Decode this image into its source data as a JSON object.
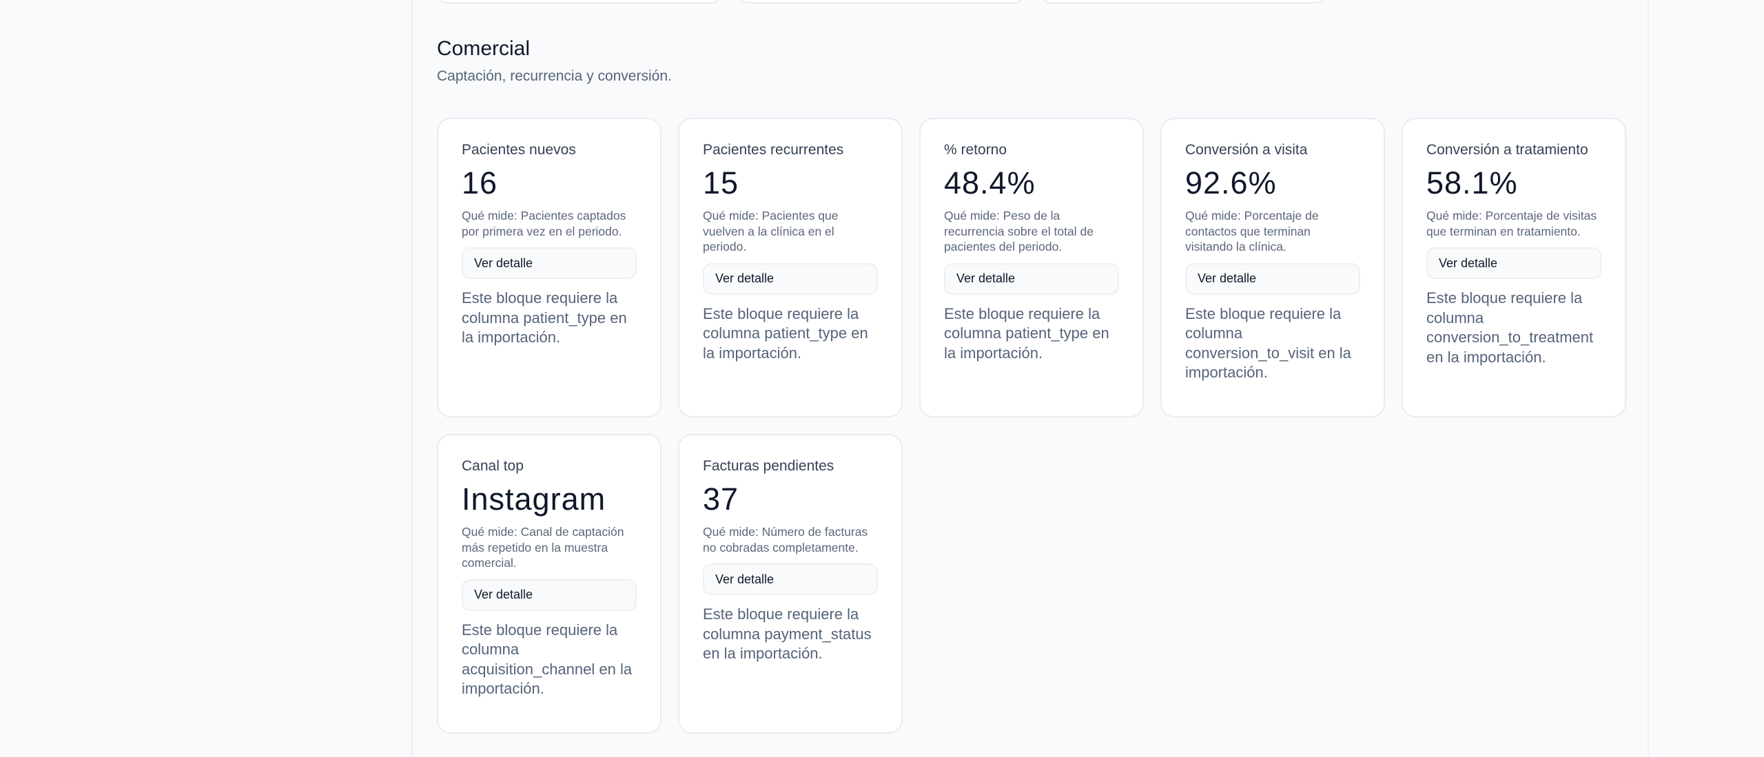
{
  "section": {
    "title": "Comercial",
    "subtitle": "Captación, recurrencia y conversión."
  },
  "cards": [
    {
      "label": "Pacientes nuevos",
      "value": "16",
      "description": "Qué mide: Pacientes captados por primera vez en el periodo.",
      "button": "Ver detalle",
      "note": "Este bloque requiere la columna patient_type en la importación."
    },
    {
      "label": "Pacientes recurrentes",
      "value": "15",
      "description": "Qué mide: Pacientes que vuelven a la clínica en el periodo.",
      "button": "Ver detalle",
      "note": "Este bloque requiere la columna patient_type en la importación."
    },
    {
      "label": "% retorno",
      "value": "48.4%",
      "description": "Qué mide: Peso de la recurrencia sobre el total de pacientes del periodo.",
      "button": "Ver detalle",
      "note": "Este bloque requiere la columna patient_type en la importación."
    },
    {
      "label": "Conversión a visita",
      "value": "92.6%",
      "description": "Qué mide: Porcentaje de contactos que terminan visitando la clínica.",
      "button": "Ver detalle",
      "note": "Este bloque requiere la columna conversion_to_visit en la importación."
    },
    {
      "label": "Conversión a tratamiento",
      "value": "58.1%",
      "description": "Qué mide: Porcentaje de visitas que terminan en tratamiento.",
      "button": "Ver detalle",
      "note": "Este bloque requiere la columna conversion_to_treatment en la importación."
    },
    {
      "label": "Canal top",
      "value": "Instagram",
      "description": "Qué mide: Canal de captación más repetido en la muestra comercial.",
      "button": "Ver detalle",
      "note": "Este bloque requiere la columna acquisition_channel en la importación."
    },
    {
      "label": "Facturas pendientes",
      "value": "37",
      "description": "Qué mide: Número de facturas no cobradas completamente.",
      "button": "Ver detalle",
      "note": "Este bloque requiere la columna payment_status en la importación."
    }
  ]
}
